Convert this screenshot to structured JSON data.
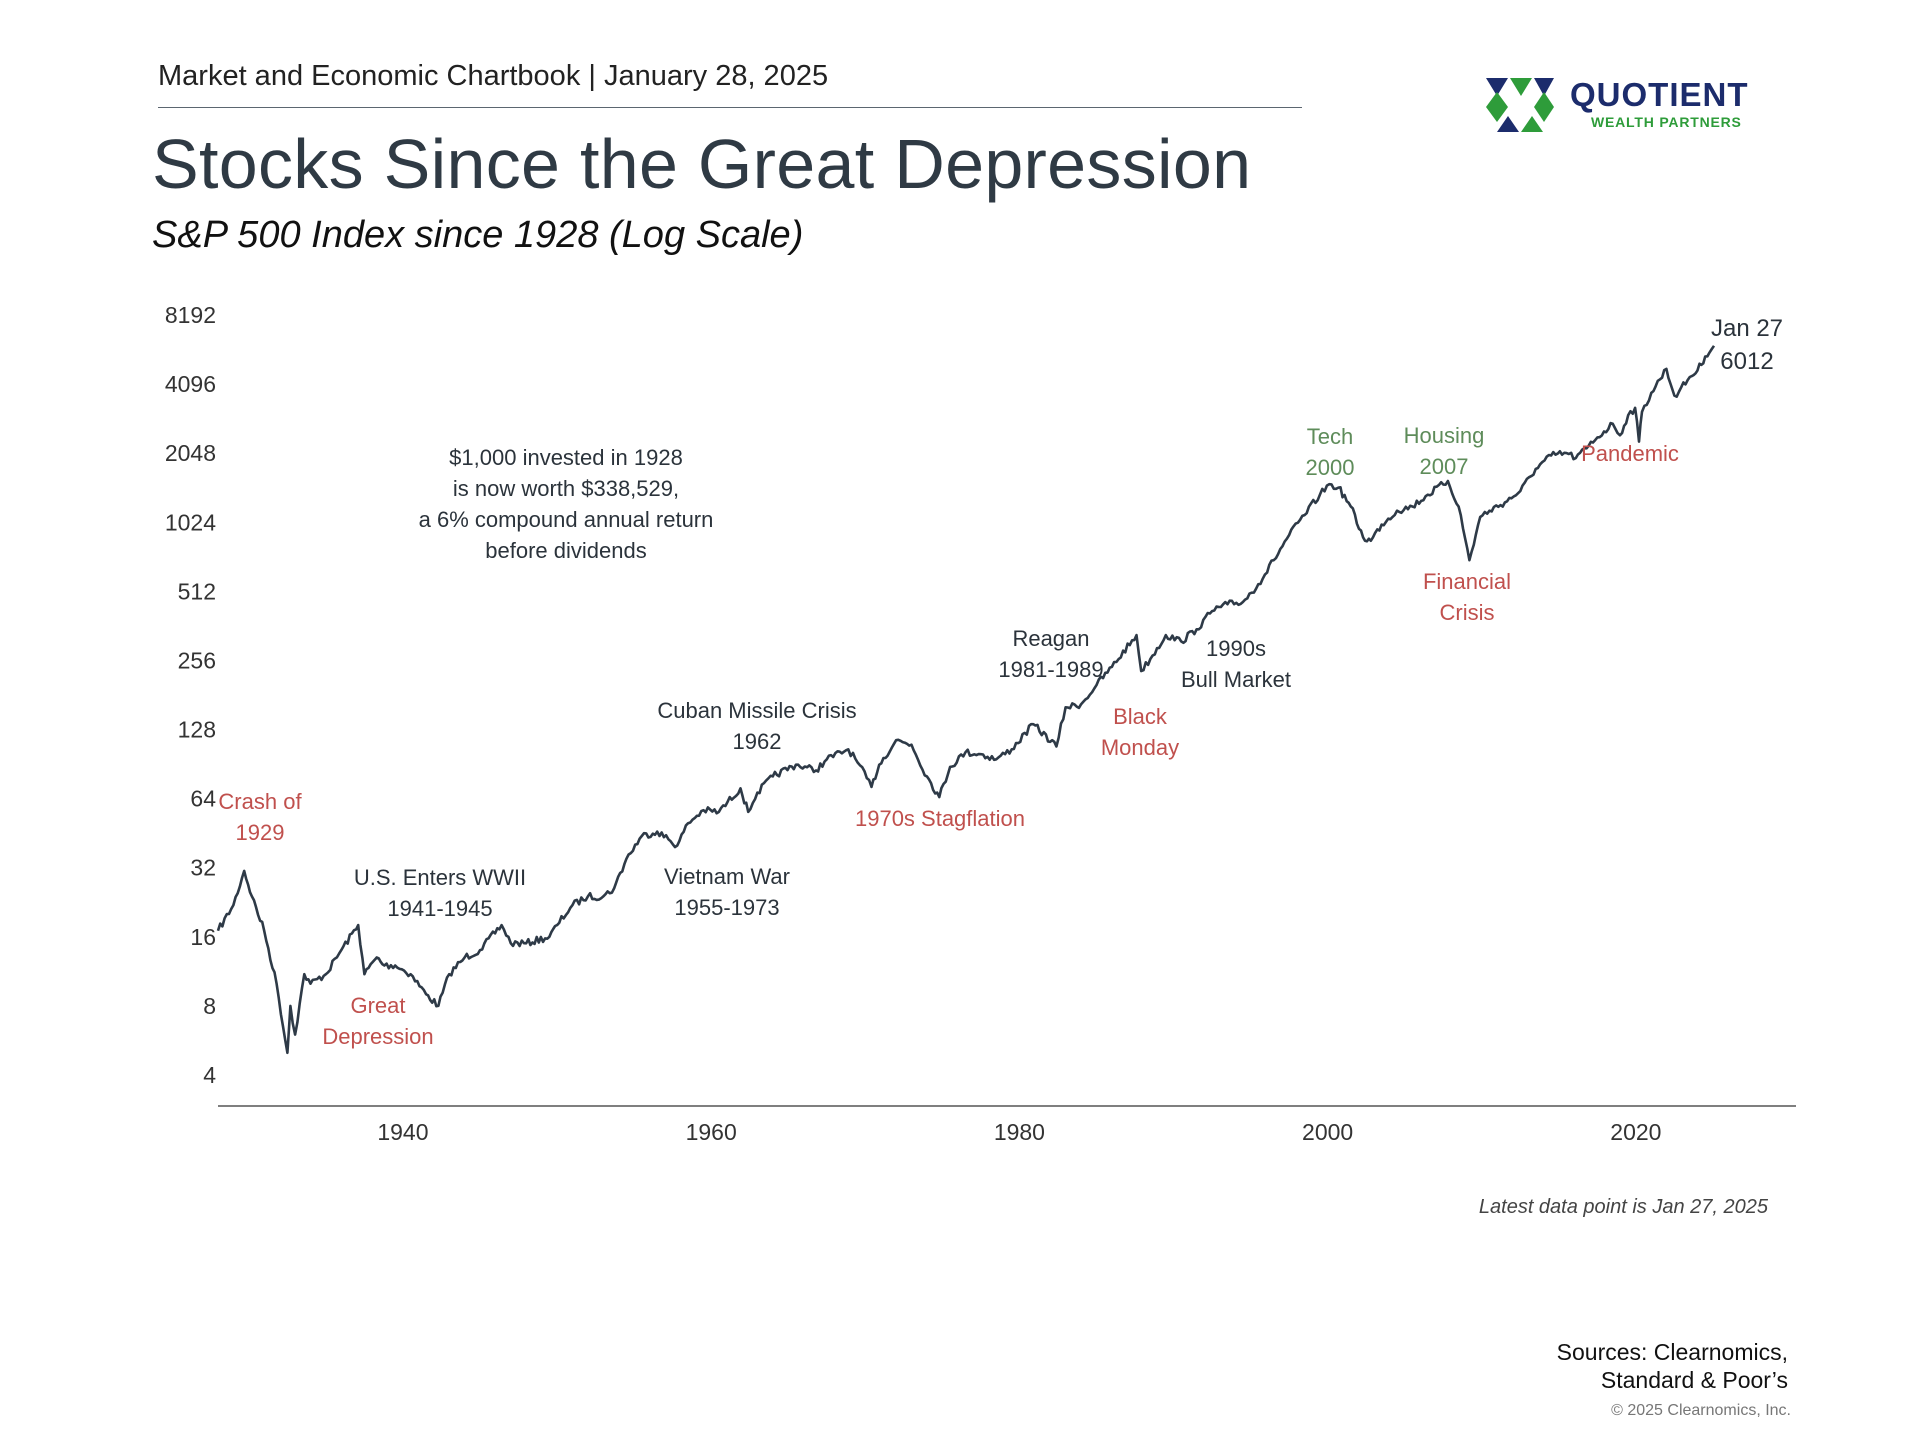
{
  "header": {
    "text": "Market and Economic Chartbook | January 28, 2025"
  },
  "title": "Stocks Since the Great Depression",
  "subtitle": "S&P 500 Index since 1928 (Log Scale)",
  "logo": {
    "name": "QUOTIENT",
    "tagline": "WEALTH PARTNERS",
    "colors": {
      "navy": "#1c2c6c",
      "green": "#2e9c3a"
    }
  },
  "colors": {
    "line": "#2e3a47",
    "event_negative": "#c0504d",
    "event_peak": "#5e8c5a",
    "event_neutral": "#2b333b",
    "axis": "#555555"
  },
  "chart_data": {
    "type": "line",
    "y_scale": "log2",
    "ylim": [
      4,
      8192
    ],
    "y_ticks": [
      "8192",
      "4096",
      "2048",
      "1024",
      "512",
      "256",
      "128",
      "64",
      "32",
      "16",
      "8",
      "4"
    ],
    "xlim": [
      1928,
      2030
    ],
    "x_ticks": [
      "1940",
      "1960",
      "1980",
      "2000",
      "2020"
    ],
    "grid": false,
    "x": [
      1928.0,
      1929.0,
      1929.7,
      1930.2,
      1931.0,
      1931.8,
      1932.5,
      1932.7,
      1933.0,
      1933.6,
      1934.0,
      1935.0,
      1936.0,
      1937.1,
      1937.5,
      1938.3,
      1938.8,
      1939.5,
      1940.5,
      1941.5,
      1942.3,
      1943.0,
      1944.0,
      1945.0,
      1946.4,
      1947.0,
      1948.0,
      1949.5,
      1950.0,
      1951.0,
      1952.0,
      1953.0,
      1953.7,
      1954.5,
      1955.5,
      1956.5,
      1957.8,
      1958.5,
      1959.5,
      1960.5,
      1961.9,
      1962.4,
      1963.0,
      1964.0,
      1965.5,
      1966.8,
      1967.5,
      1968.9,
      1969.5,
      1970.4,
      1970.9,
      1972.0,
      1973.0,
      1974.0,
      1974.8,
      1975.5,
      1976.5,
      1977.5,
      1978.5,
      1979.5,
      1980.9,
      1982.4,
      1983.0,
      1984.0,
      1985.0,
      1986.0,
      1987.6,
      1987.9,
      1988.5,
      1989.5,
      1990.5,
      1991.5,
      1992.5,
      1993.5,
      1994.5,
      1995.5,
      1996.5,
      1997.5,
      1998.5,
      1999.5,
      2000.1,
      2000.7,
      2001.5,
      2002.3,
      2002.8,
      2003.5,
      2004.5,
      2005.5,
      2006.5,
      2007.8,
      2008.5,
      2009.2,
      2009.9,
      2010.5,
      2011.5,
      2012.5,
      2013.5,
      2014.5,
      2015.5,
      2016.1,
      2016.8,
      2017.5,
      2018.5,
      2018.97,
      2019.5,
      2019.95,
      2020.2,
      2020.4,
      2021.0,
      2021.98,
      2022.5,
      2022.8,
      2023.5,
      2024.0,
      2024.5,
      2025.07
    ],
    "series": [
      {
        "values": [
          17,
          22,
          31,
          24,
          17,
          10,
          5,
          8,
          6,
          11,
          10,
          11,
          14,
          18,
          11,
          13,
          12,
          12,
          11,
          9,
          8,
          11,
          13,
          14,
          18,
          15,
          15,
          16,
          18,
          22,
          24,
          24,
          26,
          35,
          44,
          46,
          40,
          50,
          57,
          56,
          71,
          56,
          68,
          80,
          90,
          85,
          95,
          105,
          92,
          72,
          90,
          115,
          110,
          80,
          65,
          88,
          102,
          100,
          95,
          105,
          135,
          108,
          160,
          165,
          200,
          240,
          330,
          230,
          260,
          330,
          310,
          350,
          420,
          450,
          460,
          550,
          700,
          900,
          1100,
          1350,
          1500,
          1450,
          1200,
          880,
          850,
          1000,
          1150,
          1200,
          1350,
          1550,
          1200,
          700,
          1080,
          1150,
          1250,
          1400,
          1750,
          2000,
          2050,
          1950,
          2150,
          2400,
          2750,
          2450,
          3000,
          3230,
          2300,
          3100,
          3750,
          4770,
          3650,
          3800,
          4400,
          4700,
          5400,
          6012
        ]
      }
    ],
    "end_label": {
      "date": "Jan 27",
      "value": "6012"
    },
    "annotations": [
      {
        "lines": [
          "Crash of",
          "1929"
        ],
        "kind": "negative"
      },
      {
        "lines": [
          "Great",
          "Depression"
        ],
        "kind": "negative"
      },
      {
        "lines": [
          "U.S. Enters WWII",
          "1941-1945"
        ],
        "kind": "neutral"
      },
      {
        "lines": [
          "Cuban Missile Crisis",
          "1962"
        ],
        "kind": "neutral"
      },
      {
        "lines": [
          "Vietnam War",
          "1955-1973"
        ],
        "kind": "neutral"
      },
      {
        "lines": [
          "1970s Stagflation"
        ],
        "kind": "negative"
      },
      {
        "lines": [
          "Reagan",
          "1981-1989"
        ],
        "kind": "neutral"
      },
      {
        "lines": [
          "Black",
          "Monday"
        ],
        "kind": "negative"
      },
      {
        "lines": [
          "1990s",
          "Bull Market"
        ],
        "kind": "neutral"
      },
      {
        "lines": [
          "Tech",
          "2000"
        ],
        "kind": "peak"
      },
      {
        "lines": [
          "Housing",
          "2007"
        ],
        "kind": "peak"
      },
      {
        "lines": [
          "Financial",
          "Crisis"
        ],
        "kind": "negative"
      },
      {
        "lines": [
          "Pandemic"
        ],
        "kind": "negative"
      },
      {
        "lines": [
          "$1,000 invested in 1928",
          "is now worth $338,529,",
          "a 6% compound annual return",
          "before dividends"
        ],
        "kind": "neutral"
      }
    ]
  },
  "footnote": "Latest data point is Jan 27, 2025",
  "sources": {
    "line1": "Sources: Clearnomics,",
    "line2": "Standard & Poor’s"
  },
  "copyright": "© 2025 Clearnomics, Inc."
}
